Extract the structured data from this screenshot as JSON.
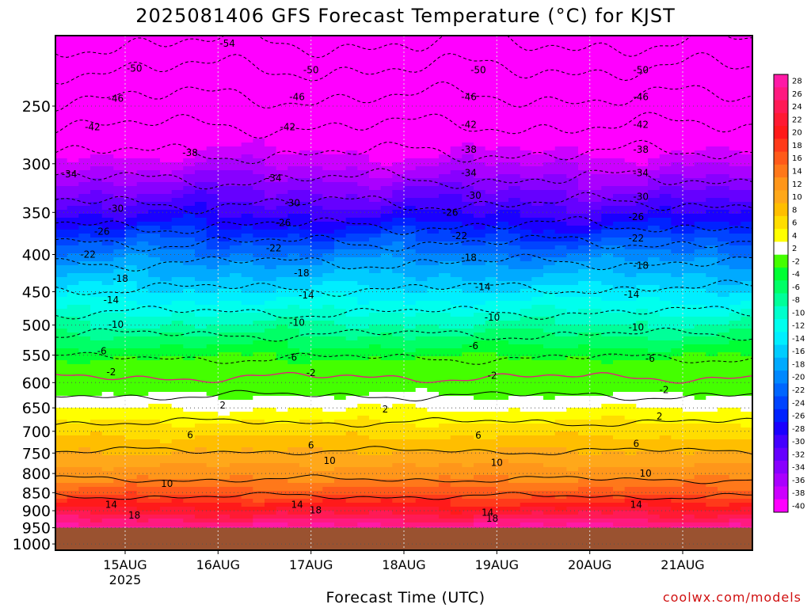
{
  "title": "2025081406 GFS Forecast Temperature (°C) for KJST",
  "xlabel": "Forecast Time (UTC)",
  "credit": "coolwx.com/models",
  "chart_data": {
    "type": "heatmap",
    "title": "2025081406 GFS Forecast Temperature (°C) for KJST",
    "xlabel": "Forecast Time (UTC)",
    "ylabel": "",
    "x_ticks": [
      {
        "day": 15,
        "label": "15AUG",
        "sublabel": "2025"
      },
      {
        "day": 16,
        "label": "16AUG",
        "sublabel": ""
      },
      {
        "day": 17,
        "label": "17AUG",
        "sublabel": ""
      },
      {
        "day": 18,
        "label": "18AUG",
        "sublabel": ""
      },
      {
        "day": 19,
        "label": "19AUG",
        "sublabel": ""
      },
      {
        "day": 20,
        "label": "20AUG",
        "sublabel": ""
      },
      {
        "day": 21,
        "label": "21AUG",
        "sublabel": ""
      }
    ],
    "x_range_days": [
      14.25,
      21.75
    ],
    "y_ticks": [
      250,
      300,
      350,
      400,
      450,
      500,
      550,
      600,
      650,
      700,
      750,
      800,
      850,
      900,
      950,
      1000
    ],
    "y_range_hpa": [
      200,
      1020
    ],
    "y_scale": "log (pressure)",
    "grid": "dotted",
    "terrain_below_hpa": 950,
    "terrain_color": "#9a5230",
    "colorbar": {
      "placement": "right",
      "levels": [
        28,
        26,
        24,
        22,
        20,
        18,
        16,
        14,
        12,
        10,
        8,
        6,
        4,
        2,
        -2,
        -4,
        -6,
        -8,
        -10,
        -12,
        -14,
        -16,
        -18,
        -20,
        -22,
        -24,
        -26,
        -28,
        -30,
        -32,
        -34,
        -36,
        -38,
        -40
      ],
      "colors": [
        "#ff1aa6",
        "#ff1a80",
        "#ff1a55",
        "#ff1a33",
        "#ff1a1a",
        "#ff3a1a",
        "#ff5a1a",
        "#ff781a",
        "#ff961a",
        "#ffa81a",
        "#ffbe00",
        "#ffdd00",
        "#ffff00",
        "#ffffff",
        "#44ff00",
        "#00ff33",
        "#00ff66",
        "#00ff99",
        "#00ffcc",
        "#00ffee",
        "#00eeff",
        "#00ccff",
        "#00aaff",
        "#0088ff",
        "#0066ff",
        "#0044ff",
        "#0022ff",
        "#1a00ff",
        "#4400ff",
        "#6600ff",
        "#8800ff",
        "#aa00ff",
        "#cc00ff",
        "#ff00ff"
      ]
    },
    "contours": [
      {
        "value": -54,
        "label": "-54",
        "pressure_hpa": 205
      },
      {
        "value": -50,
        "label": "-50",
        "pressure_hpa": 222
      },
      {
        "value": -46,
        "label": "-46",
        "pressure_hpa": 243
      },
      {
        "value": -42,
        "label": "-42",
        "pressure_hpa": 266
      },
      {
        "value": -38,
        "label": "-38",
        "pressure_hpa": 290
      },
      {
        "value": -34,
        "label": "-34",
        "pressure_hpa": 315
      },
      {
        "value": -30,
        "label": "-30",
        "pressure_hpa": 340
      },
      {
        "value": -26,
        "label": "-26",
        "pressure_hpa": 365
      },
      {
        "value": -22,
        "label": "-22",
        "pressure_hpa": 385
      },
      {
        "value": -18,
        "label": "-18",
        "pressure_hpa": 410
      },
      {
        "value": -14,
        "label": "-14",
        "pressure_hpa": 445
      },
      {
        "value": -10,
        "label": "-10",
        "pressure_hpa": 480
      },
      {
        "value": -6,
        "label": "-6",
        "pressure_hpa": 515
      },
      {
        "value": -2,
        "label": "-2",
        "pressure_hpa": 555
      },
      {
        "value": 0,
        "label": "",
        "pressure_hpa": 590
      },
      {
        "value": 2,
        "label": "2",
        "pressure_hpa": 625
      },
      {
        "value": 6,
        "label": "6",
        "pressure_hpa": 680
      },
      {
        "value": 10,
        "label": "10",
        "pressure_hpa": 745
      },
      {
        "value": 14,
        "label": "14",
        "pressure_hpa": 815
      },
      {
        "value": 18,
        "label": "18",
        "pressure_hpa": 860
      }
    ],
    "contour_labels": [
      {
        "day": 16.1,
        "pressure_hpa": 205,
        "label": "-54"
      },
      {
        "day": 15.1,
        "pressure_hpa": 222,
        "label": "-50"
      },
      {
        "day": 17.0,
        "pressure_hpa": 223,
        "label": "-50"
      },
      {
        "day": 18.8,
        "pressure_hpa": 223,
        "label": "-50"
      },
      {
        "day": 20.55,
        "pressure_hpa": 223,
        "label": "-50"
      },
      {
        "day": 14.9,
        "pressure_hpa": 244,
        "label": "-46"
      },
      {
        "day": 16.85,
        "pressure_hpa": 243,
        "label": "-46"
      },
      {
        "day": 18.7,
        "pressure_hpa": 243,
        "label": "-46"
      },
      {
        "day": 20.55,
        "pressure_hpa": 243,
        "label": "-46"
      },
      {
        "day": 14.65,
        "pressure_hpa": 267,
        "label": "-42"
      },
      {
        "day": 16.75,
        "pressure_hpa": 267,
        "label": "-42"
      },
      {
        "day": 18.7,
        "pressure_hpa": 265,
        "label": "-42"
      },
      {
        "day": 20.55,
        "pressure_hpa": 265,
        "label": "-42"
      },
      {
        "day": 15.7,
        "pressure_hpa": 290,
        "label": "-38"
      },
      {
        "day": 18.7,
        "pressure_hpa": 287,
        "label": "-38"
      },
      {
        "day": 20.55,
        "pressure_hpa": 287,
        "label": "-38"
      },
      {
        "day": 14.4,
        "pressure_hpa": 310,
        "label": "-34"
      },
      {
        "day": 16.6,
        "pressure_hpa": 314,
        "label": "-34"
      },
      {
        "day": 18.7,
        "pressure_hpa": 309,
        "label": "-34"
      },
      {
        "day": 20.55,
        "pressure_hpa": 309,
        "label": "-34"
      },
      {
        "day": 14.9,
        "pressure_hpa": 346,
        "label": "-30"
      },
      {
        "day": 16.8,
        "pressure_hpa": 340,
        "label": "-30"
      },
      {
        "day": 18.75,
        "pressure_hpa": 332,
        "label": "-30"
      },
      {
        "day": 20.55,
        "pressure_hpa": 333,
        "label": "-30"
      },
      {
        "day": 14.75,
        "pressure_hpa": 372,
        "label": "-26"
      },
      {
        "day": 16.7,
        "pressure_hpa": 362,
        "label": "-26"
      },
      {
        "day": 18.5,
        "pressure_hpa": 350,
        "label": "-26"
      },
      {
        "day": 20.5,
        "pressure_hpa": 355,
        "label": "-26"
      },
      {
        "day": 14.6,
        "pressure_hpa": 400,
        "label": "-22"
      },
      {
        "day": 16.6,
        "pressure_hpa": 392,
        "label": "-22"
      },
      {
        "day": 18.6,
        "pressure_hpa": 377,
        "label": "-22"
      },
      {
        "day": 20.5,
        "pressure_hpa": 380,
        "label": "-22"
      },
      {
        "day": 14.95,
        "pressure_hpa": 432,
        "label": "-18"
      },
      {
        "day": 16.9,
        "pressure_hpa": 424,
        "label": "-18"
      },
      {
        "day": 18.7,
        "pressure_hpa": 404,
        "label": "-18"
      },
      {
        "day": 20.55,
        "pressure_hpa": 414,
        "label": "-18"
      },
      {
        "day": 14.85,
        "pressure_hpa": 462,
        "label": "-14"
      },
      {
        "day": 16.95,
        "pressure_hpa": 455,
        "label": "-14"
      },
      {
        "day": 18.85,
        "pressure_hpa": 443,
        "label": "-14"
      },
      {
        "day": 20.45,
        "pressure_hpa": 454,
        "label": "-14"
      },
      {
        "day": 14.9,
        "pressure_hpa": 499,
        "label": "-10"
      },
      {
        "day": 16.85,
        "pressure_hpa": 496,
        "label": "-10"
      },
      {
        "day": 18.95,
        "pressure_hpa": 488,
        "label": "-10"
      },
      {
        "day": 20.5,
        "pressure_hpa": 504,
        "label": "-10"
      },
      {
        "day": 14.75,
        "pressure_hpa": 543,
        "label": "-6"
      },
      {
        "day": 16.8,
        "pressure_hpa": 554,
        "label": "-6"
      },
      {
        "day": 18.75,
        "pressure_hpa": 534,
        "label": "-6"
      },
      {
        "day": 20.65,
        "pressure_hpa": 556,
        "label": "-6"
      },
      {
        "day": 14.85,
        "pressure_hpa": 580,
        "label": "-2"
      },
      {
        "day": 17.0,
        "pressure_hpa": 582,
        "label": "-2"
      },
      {
        "day": 18.95,
        "pressure_hpa": 587,
        "label": "-2"
      },
      {
        "day": 20.8,
        "pressure_hpa": 614,
        "label": "-2"
      },
      {
        "day": 16.05,
        "pressure_hpa": 645,
        "label": "2"
      },
      {
        "day": 17.8,
        "pressure_hpa": 653,
        "label": "2"
      },
      {
        "day": 20.75,
        "pressure_hpa": 668,
        "label": "2"
      },
      {
        "day": 15.7,
        "pressure_hpa": 708,
        "label": "6"
      },
      {
        "day": 17.0,
        "pressure_hpa": 732,
        "label": "6"
      },
      {
        "day": 18.8,
        "pressure_hpa": 709,
        "label": "6"
      },
      {
        "day": 20.5,
        "pressure_hpa": 728,
        "label": "6"
      },
      {
        "day": 15.45,
        "pressure_hpa": 826,
        "label": "10"
      },
      {
        "day": 17.2,
        "pressure_hpa": 768,
        "label": "10"
      },
      {
        "day": 19.0,
        "pressure_hpa": 773,
        "label": "10"
      },
      {
        "day": 20.6,
        "pressure_hpa": 800,
        "label": "10"
      },
      {
        "day": 14.85,
        "pressure_hpa": 883,
        "label": "14"
      },
      {
        "day": 16.85,
        "pressure_hpa": 883,
        "label": "14"
      },
      {
        "day": 18.9,
        "pressure_hpa": 905,
        "label": "14"
      },
      {
        "day": 20.5,
        "pressure_hpa": 883,
        "label": "14"
      },
      {
        "day": 15.1,
        "pressure_hpa": 914,
        "label": "18"
      },
      {
        "day": 17.05,
        "pressure_hpa": 899,
        "label": "18"
      },
      {
        "day": 18.95,
        "pressure_hpa": 923,
        "label": "18"
      }
    ]
  }
}
